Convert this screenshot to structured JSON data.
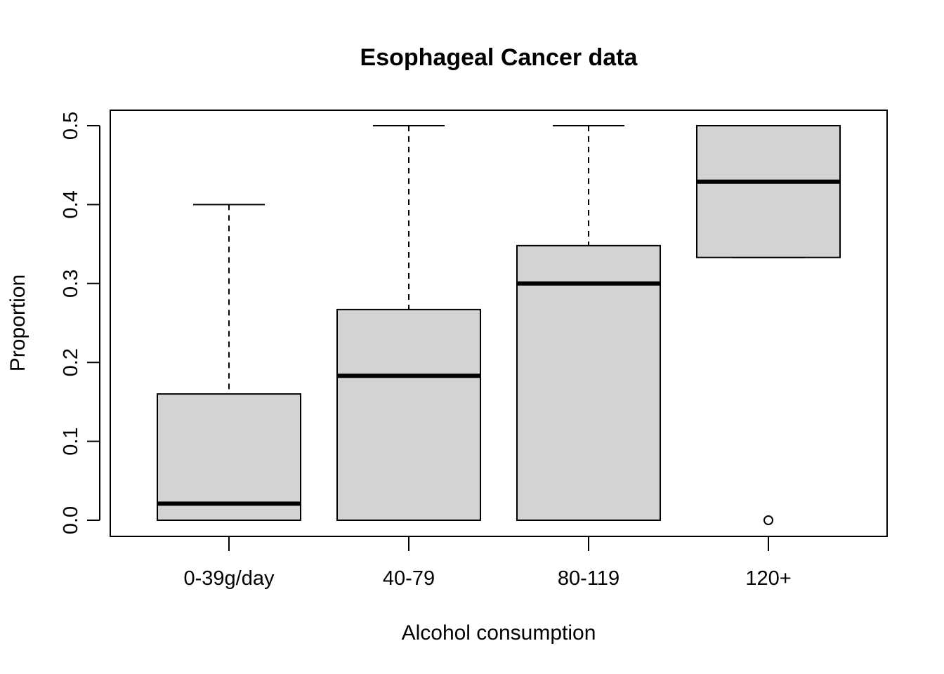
{
  "chart_data": {
    "type": "boxplot",
    "title": "Esophageal Cancer data",
    "xlabel": "Alcohol consumption",
    "ylabel": "Proportion",
    "ylim": [
      0,
      0.5
    ],
    "yticks": [
      "0.0",
      "0.1",
      "0.2",
      "0.3",
      "0.4",
      "0.5"
    ],
    "grid": false,
    "categories": [
      "0-39g/day",
      "40-79",
      "80-119",
      "120+"
    ],
    "boxes": [
      {
        "category": "0-39g/day",
        "whisker_low": 0.0,
        "q1": 0.0,
        "median": 0.021,
        "q3": 0.16,
        "whisker_high": 0.4,
        "outliers": []
      },
      {
        "category": "40-79",
        "whisker_low": 0.0,
        "q1": 0.0,
        "median": 0.183,
        "q3": 0.267,
        "whisker_high": 0.5,
        "outliers": []
      },
      {
        "category": "80-119",
        "whisker_low": 0.0,
        "q1": 0.0,
        "median": 0.3,
        "q3": 0.348,
        "whisker_high": 0.5,
        "outliers": []
      },
      {
        "category": "120+",
        "whisker_low": 0.333,
        "q1": 0.333,
        "median": 0.429,
        "q3": 0.5,
        "whisker_high": 0.5,
        "outliers": [
          0.0
        ]
      }
    ],
    "colors": {
      "box_fill": "#d3d3d3",
      "stroke": "#000000"
    }
  }
}
